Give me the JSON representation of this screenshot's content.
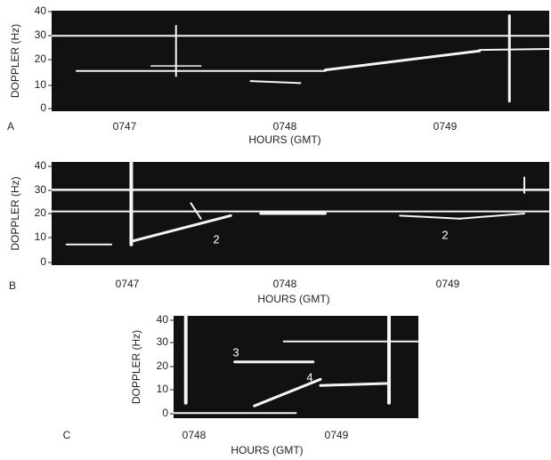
{
  "panels": [
    {
      "label": "A",
      "y_axis_label": "DOPPLER (Hz)",
      "yticks": [
        "40",
        "30",
        "20",
        "10",
        "0"
      ],
      "xticks": [
        "0747",
        "0748",
        "0749"
      ],
      "x_axis_label": "HOURS (GMT)",
      "annotations": []
    },
    {
      "label": "B",
      "y_axis_label": "DOPPLER (Hz)",
      "yticks": [
        "40",
        "30",
        "20",
        "10",
        "0"
      ],
      "xticks": [
        "0747",
        "0748",
        "0749"
      ],
      "x_axis_label": "HOURS (GMT)",
      "annotations": [
        "2",
        "2"
      ]
    },
    {
      "label": "C",
      "y_axis_label": "DOPPLER (Hz)",
      "yticks": [
        "40",
        "30",
        "20",
        "10",
        "0"
      ],
      "xticks": [
        "0748",
        "0749"
      ],
      "x_axis_label": "HOURS (GMT)",
      "annotations": [
        "3",
        "4"
      ]
    }
  ]
}
